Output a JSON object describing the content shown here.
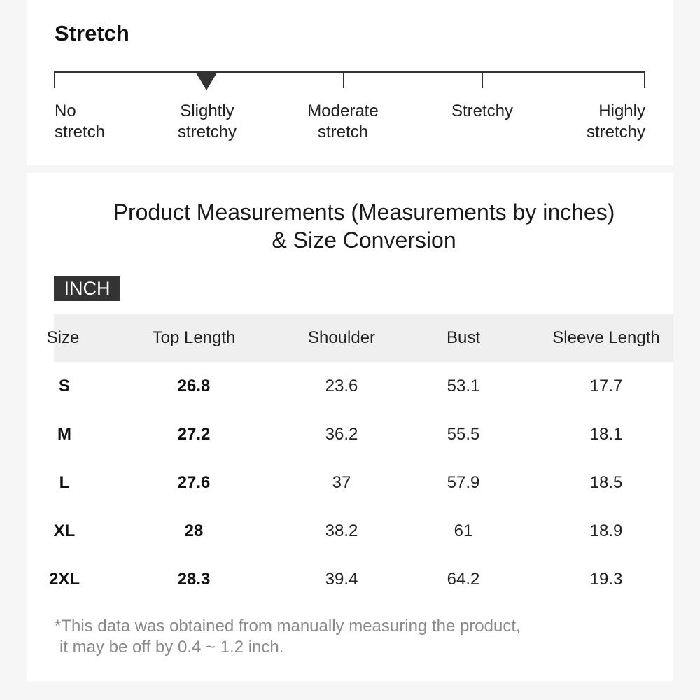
{
  "stretch": {
    "title": "Stretch",
    "levels": [
      "No\nstretch",
      "Slightly\nstretchy",
      "Moderate\nstretch",
      "Stretchy",
      "Highly\nstretchy"
    ],
    "selected_level": "Slightly\nstretchy"
  },
  "measurements": {
    "heading": "Product Measurements (Measurements by inches) & Size Conversion",
    "unit_badge": "INCH",
    "columns": [
      "Size",
      "Top Length",
      "Shoulder",
      "Bust",
      "Sleeve Length"
    ],
    "rows": [
      [
        "S",
        "26.8",
        "23.6",
        "53.1",
        "17.7"
      ],
      [
        "M",
        "27.2",
        "36.2",
        "55.5",
        "18.1"
      ],
      [
        "L",
        "27.6",
        "37",
        "57.9",
        "18.5"
      ],
      [
        "XL",
        "28",
        "38.2",
        "61",
        "18.9"
      ],
      [
        "2XL",
        "28.3",
        "39.4",
        "64.2",
        "19.3"
      ]
    ],
    "note_line1": "*This data was obtained from manually measuring the product,",
    "note_line2": "it may be off by 0.4 ~ 1.2 inch."
  },
  "colors": {
    "badge_background": "#333333",
    "header_row_background": "#efefef",
    "note_text": "#8a8a8a"
  }
}
